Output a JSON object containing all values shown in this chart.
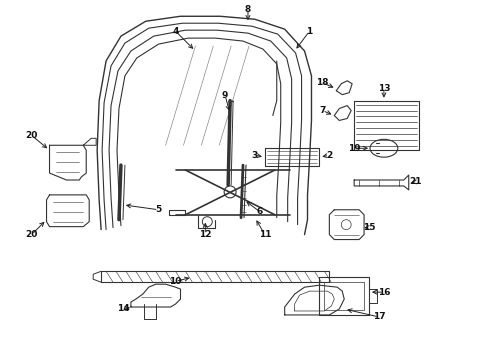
{
  "background_color": "#ffffff",
  "line_color": "#333333",
  "figsize": [
    4.9,
    3.6
  ],
  "dpi": 100,
  "arrow_color": "#222222",
  "lc": "#333333"
}
